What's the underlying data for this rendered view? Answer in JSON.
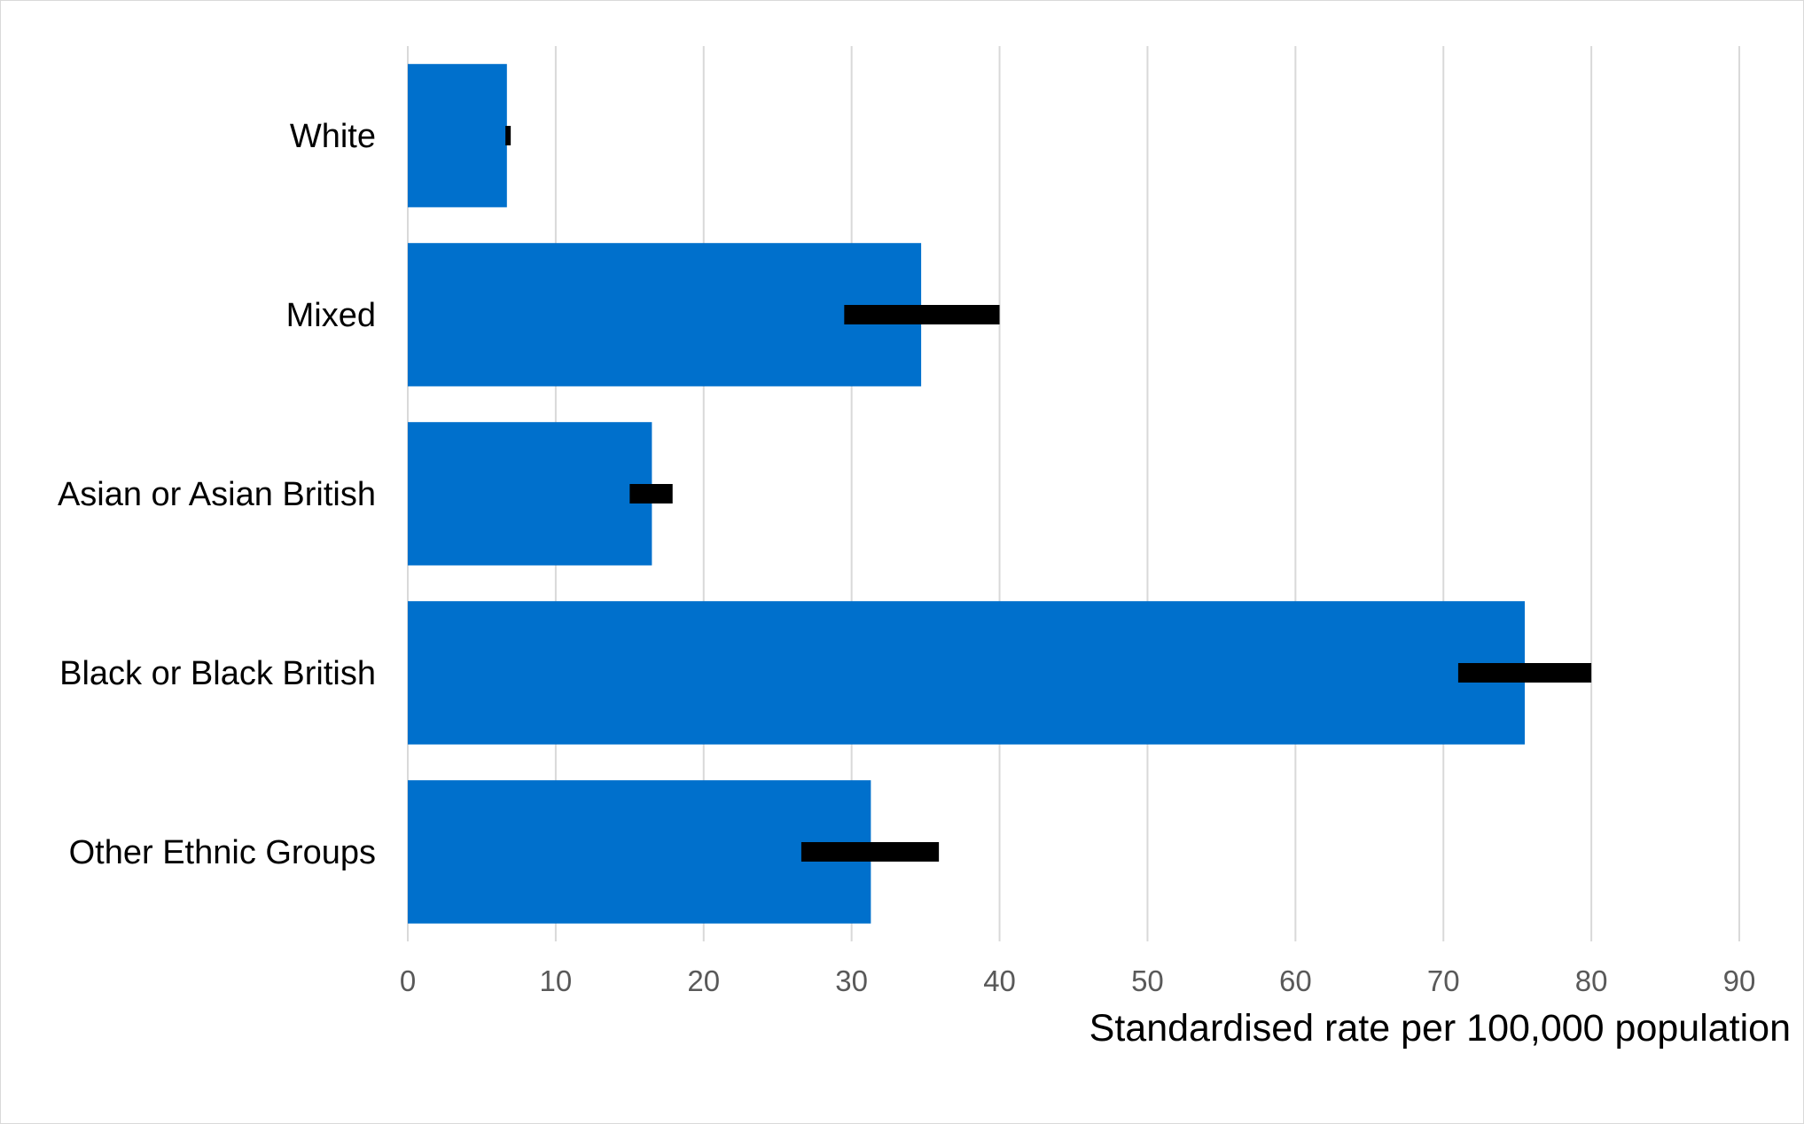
{
  "chart_data": {
    "type": "bar",
    "orientation": "horizontal",
    "categories": [
      "White",
      "Mixed",
      "Asian or Asian British",
      "Black or Black British",
      "Other Ethnic Groups"
    ],
    "values": [
      6.7,
      34.7,
      16.5,
      75.5,
      31.3
    ],
    "error_bars": [
      {
        "low": 6.6,
        "high": 6.9
      },
      {
        "low": 29.5,
        "high": 40.0
      },
      {
        "low": 15.0,
        "high": 17.9
      },
      {
        "low": 71.0,
        "high": 80.0
      },
      {
        "low": 26.6,
        "high": 35.9
      }
    ],
    "xlabel": "Standardised rate per 100,000 population",
    "ylabel": "",
    "title": "",
    "xlim": [
      0,
      90
    ],
    "xticks": [
      0,
      10,
      20,
      30,
      40,
      50,
      60,
      70,
      80,
      90
    ],
    "grid": "vertical",
    "legend": "none",
    "colors": {
      "bar": "#0070CC",
      "error": "#000000",
      "grid": "#d9d9d9",
      "tick_text": "#595959"
    }
  }
}
